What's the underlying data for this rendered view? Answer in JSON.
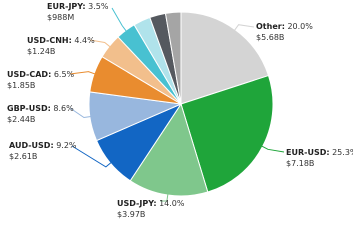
{
  "chart_data": {
    "type": "pie",
    "categories": [
      "Other",
      "EUR-USD",
      "USD-JPY",
      "AUD-USD",
      "GBP-USD",
      "USD-CAD",
      "USD-CNH",
      "EUR-JPY",
      null,
      null,
      null
    ],
    "values": [
      20.0,
      25.3,
      14.0,
      9.2,
      8.6,
      6.5,
      4.4,
      3.5,
      3.0,
      2.8,
      2.7
    ],
    "value_labels": [
      "20.0%",
      "25.3%",
      "14.0%",
      "9.2%",
      "8.6%",
      "6.5%",
      "4.4%",
      "3.5%",
      null,
      null,
      null
    ],
    "amounts": [
      "$5.68B",
      "$7.18B",
      "$3.97B",
      "$2.61B",
      "$2.44B",
      "$1.85B",
      "$1.24B",
      "$988M",
      null,
      null,
      null
    ],
    "colors": [
      "#d4d4d4",
      "#1fa53a",
      "#7fc78c",
      "#1266c4",
      "#98b7de",
      "#e98c2f",
      "#f2bf8c",
      "#48c1d1",
      "#b0e3eb",
      "#55595f",
      "#a5a5a5"
    ]
  }
}
